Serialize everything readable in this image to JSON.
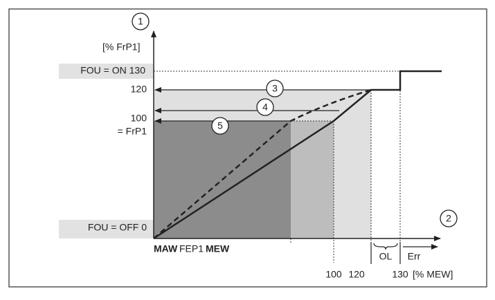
{
  "y_axis": {
    "marker": "1",
    "unit": "[% FrP1]"
  },
  "x_axis": {
    "marker": "2",
    "unit": "[% MEW]"
  },
  "y_labels": {
    "fou_on": "FOU = ON 130",
    "v120": "120",
    "v100": "100",
    "frp1": "= FrP1",
    "fou_off": "FOU = OFF 0"
  },
  "x_labels": {
    "maw": "MAW",
    "fep1": "FEP1",
    "mew": "MEW",
    "v100": "100",
    "v120": "120",
    "v130": "130"
  },
  "ranges": {
    "ol": "OL",
    "err": "Err"
  },
  "callouts": [
    "3",
    "4",
    "5"
  ]
}
